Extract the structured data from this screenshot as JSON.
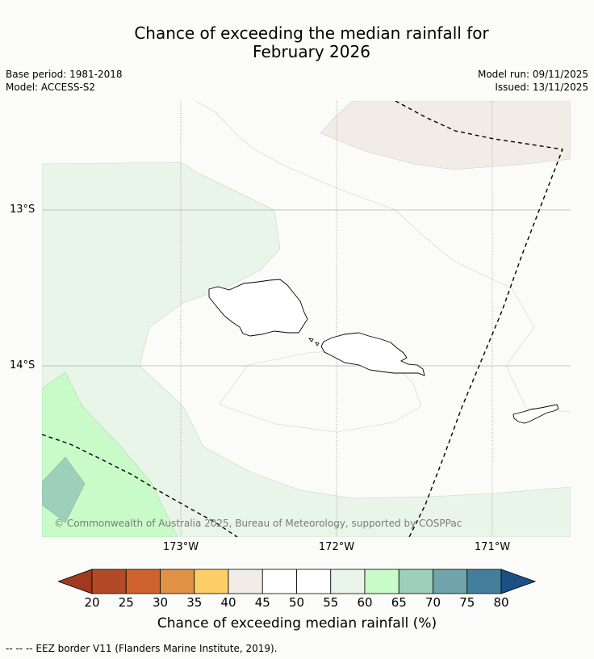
{
  "title": {
    "line1": "Chance of exceeding the median rainfall for",
    "line2": "February 2026"
  },
  "meta": {
    "base_period": "Base period: 1981-2018",
    "model": "Model: ACCESS-S2",
    "model_run": "Model run: 09/11/2025",
    "issued": "Issued: 13/11/2025"
  },
  "map": {
    "lat_labels": [
      "13°S",
      "14°S"
    ],
    "lon_labels": [
      "173°W",
      "172°W",
      "171°W"
    ],
    "copyright": "© Commonwealth of Australia 2025, Bureau of Meteorology, supported by COSPPac"
  },
  "colorbar": {
    "ticks": [
      "20",
      "25",
      "30",
      "35",
      "40",
      "45",
      "50",
      "55",
      "60",
      "65",
      "70",
      "75",
      "80"
    ],
    "label": "Chance of exceeding median rainfall (%)",
    "low_extend_color": "#a0391f",
    "high_extend_color": "#1b5085",
    "colors": [
      "#b24a26",
      "#cf6330",
      "#e09344",
      "#fdcd67",
      "#f1ece6",
      "#ffffff",
      "#ffffff",
      "#e9f5e9",
      "#c9fbc9",
      "#9dcfbb",
      "#6fa5aa",
      "#437f9c"
    ]
  },
  "footnote": "--  --  -- EEZ border V11 (Flanders Marine Institute, 2019)."
}
